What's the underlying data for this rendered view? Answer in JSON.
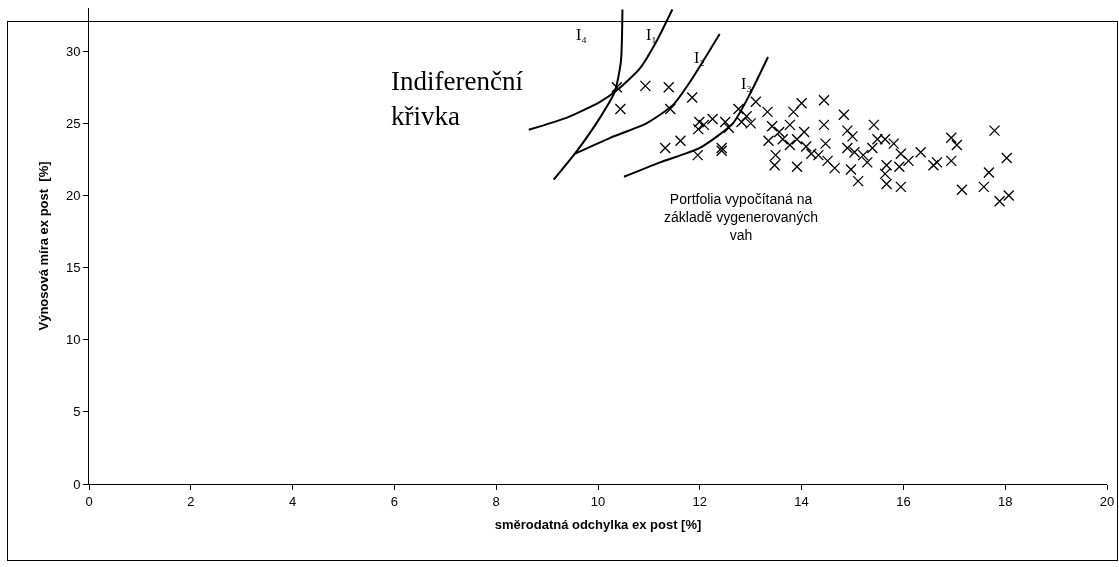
{
  "chart_data": {
    "type": "scatter",
    "xlabel": "směrodatná odchylka ex post [%]",
    "ylabel": "Výnosová míra ex post  [%]",
    "xlim": [
      0,
      20
    ],
    "xticks": [
      0,
      2,
      4,
      6,
      8,
      10,
      12,
      14,
      16,
      18,
      20
    ],
    "ylim": [
      0,
      33
    ],
    "yticks": [
      0,
      5,
      10,
      15,
      20,
      25,
      30
    ],
    "grid": false,
    "annotations": [
      "I₄",
      "I₁",
      "I₂",
      "I₃",
      "Indiferenční\nkřivka",
      "Portfolia vypočítaná na\nzákladě vygenerovaných\nvah"
    ],
    "series": [
      {
        "color": "#000000",
        "marker": "cross",
        "x": [
          10.37,
          10.93,
          11.39,
          10.44,
          11.42,
          11.85,
          11.32,
          11.62,
          11.96,
          12.43,
          12.43,
          11.99,
          12.08,
          12.25,
          11.97,
          12.5,
          12.57,
          12.76,
          12.82,
          12.92,
          13.0,
          13.1,
          13.33,
          13.42,
          13.56,
          13.47,
          13.35,
          13.63,
          13.77,
          13.91,
          13.49,
          13.84,
          14.0,
          13.77,
          14.05,
          13.91,
          14.09,
          14.19,
          14.44,
          14.44,
          14.47,
          14.33,
          14.51,
          14.65,
          14.83,
          14.9,
          15.0,
          14.9,
          15.04,
          15.21,
          15.29,
          14.97,
          15.11,
          15.42,
          15.49,
          15.64,
          15.81,
          15.39,
          15.67,
          15.95,
          16.1,
          15.92,
          15.64,
          15.67,
          15.95,
          16.34,
          16.59,
          16.66,
          16.94,
          17.05,
          16.94,
          17.15,
          17.58,
          17.68,
          17.79,
          18.03,
          17.89,
          18.07
        ],
        "values": [
          27.5,
          27.6,
          27.5,
          26.0,
          26.0,
          26.8,
          23.3,
          23.8,
          22.8,
          23.1,
          23.3,
          25.1,
          24.9,
          25.3,
          24.6,
          25.1,
          24.7,
          26.0,
          25.1,
          25.5,
          25.0,
          26.5,
          25.8,
          24.8,
          24.4,
          22.1,
          23.8,
          23.9,
          23.5,
          22.0,
          22.8,
          25.8,
          26.4,
          24.9,
          24.4,
          23.9,
          23.4,
          22.9,
          26.6,
          24.9,
          23.6,
          22.8,
          22.4,
          21.9,
          25.6,
          24.5,
          24.1,
          23.3,
          23.0,
          22.8,
          22.3,
          21.8,
          21.0,
          24.9,
          23.9,
          23.9,
          23.6,
          23.3,
          22.1,
          22.9,
          22.4,
          22.0,
          21.5,
          20.8,
          20.6,
          23.0,
          22.1,
          22.3,
          24.0,
          23.5,
          22.4,
          20.4,
          20.6,
          21.6,
          24.5,
          22.6,
          19.6,
          20.0
        ]
      },
      {
        "type": "line",
        "color": "#000000",
        "marker": "none",
        "x": [
          9.13,
          9.58,
          10.04,
          10.33,
          10.45,
          10.48
        ],
        "values": [
          21.1,
          23.06,
          25.4,
          27.2,
          29.3,
          32.9
        ]
      },
      {
        "type": "line",
        "color": "#000000",
        "marker": "none",
        "x": [
          8.64,
          9.39,
          10.04,
          10.37,
          10.82,
          11.15,
          11.46
        ],
        "values": [
          24.56,
          25.4,
          26.5,
          27.3,
          28.8,
          30.7,
          32.9
        ]
      },
      {
        "type": "line",
        "color": "#000000",
        "marker": "none",
        "x": [
          9.55,
          10.24,
          10.95,
          11.48,
          11.83,
          12.39
        ],
        "values": [
          22.9,
          24.0,
          25.0,
          26.3,
          28.0,
          31.2
        ]
      },
      {
        "type": "line",
        "color": "#000000",
        "marker": "none",
        "x": [
          10.51,
          11.22,
          12.0,
          12.65,
          12.98,
          13.34
        ],
        "values": [
          21.3,
          22.3,
          23.3,
          25.0,
          27.0,
          29.6
        ]
      }
    ]
  }
}
